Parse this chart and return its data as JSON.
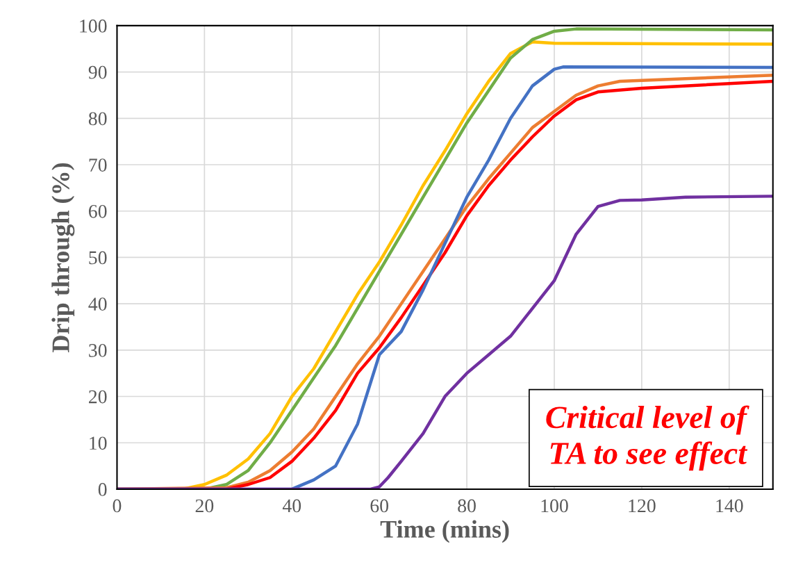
{
  "chart_data": {
    "type": "line",
    "xlabel": "Time (mins)",
    "ylabel": "Drip through (%)",
    "xlim": [
      0,
      150
    ],
    "xticks": [
      0,
      20,
      40,
      60,
      80,
      100,
      120,
      140
    ],
    "ylim": [
      0,
      100
    ],
    "yticks": [
      0,
      10,
      20,
      30,
      40,
      50,
      60,
      70,
      80,
      90,
      100
    ],
    "grid": true,
    "line_style": "solid",
    "marker": "none",
    "annotations": [
      "Critical level of\nTA to see effect"
    ],
    "series": [
      {
        "color": "#ffc000",
        "x": [
          0,
          15,
          20,
          25,
          30,
          35,
          40,
          45,
          50,
          55,
          60,
          65,
          70,
          75,
          80,
          85,
          90,
          95,
          100,
          150
        ],
        "values": [
          0,
          0,
          1,
          3,
          6.5,
          12,
          20,
          26,
          34,
          42,
          49,
          57,
          65.5,
          73,
          81,
          88,
          94,
          96.5,
          96.2,
          96
        ]
      },
      {
        "color": "#70ad47",
        "x": [
          0,
          20,
          25,
          30,
          35,
          40,
          45,
          50,
          55,
          60,
          65,
          70,
          75,
          80,
          85,
          90,
          95,
          100,
          105,
          150
        ],
        "values": [
          0,
          0,
          1,
          4,
          10,
          17,
          24,
          31,
          39,
          47,
          55,
          63,
          71,
          79,
          86,
          93,
          97,
          98.8,
          99.3,
          99.1
        ]
      },
      {
        "color": "#ed7d31",
        "x": [
          0,
          25,
          30,
          35,
          40,
          45,
          50,
          55,
          60,
          65,
          70,
          75,
          80,
          85,
          90,
          95,
          100,
          105,
          110,
          115,
          150
        ],
        "values": [
          0,
          0.3,
          1.5,
          4,
          8,
          13,
          20,
          27,
          33,
          40,
          47,
          54,
          61,
          67,
          72.5,
          78,
          81.5,
          85,
          87,
          88,
          89.3
        ]
      },
      {
        "color": "#ff0000",
        "x": [
          0,
          25,
          30,
          35,
          40,
          45,
          50,
          55,
          60,
          65,
          70,
          75,
          80,
          85,
          90,
          95,
          100,
          105,
          110,
          120,
          150
        ],
        "values": [
          0,
          0,
          1,
          2.5,
          6,
          11,
          17,
          25,
          30.5,
          37,
          44,
          51,
          59,
          65.5,
          71,
          76,
          80.5,
          84,
          85.7,
          86.5,
          88
        ]
      },
      {
        "color": "#4472c4",
        "x": [
          0,
          40,
          45,
          50,
          55,
          57,
          60,
          65,
          70,
          75,
          80,
          85,
          90,
          95,
          100,
          102,
          150
        ],
        "values": [
          0,
          0,
          2,
          5,
          14,
          20,
          29,
          34,
          43,
          53,
          63,
          71,
          80,
          87,
          90.6,
          91.1,
          91
        ]
      },
      {
        "color": "#7030a0",
        "x": [
          0,
          58,
          60,
          62,
          65,
          70,
          75,
          80,
          85,
          90,
          95,
          100,
          105,
          110,
          115,
          120,
          130,
          150
        ],
        "values": [
          0,
          0,
          0.5,
          2.5,
          6,
          12,
          20,
          25,
          29,
          33,
          39,
          45,
          55,
          61,
          62.3,
          62.4,
          63,
          63.2
        ]
      }
    ]
  }
}
